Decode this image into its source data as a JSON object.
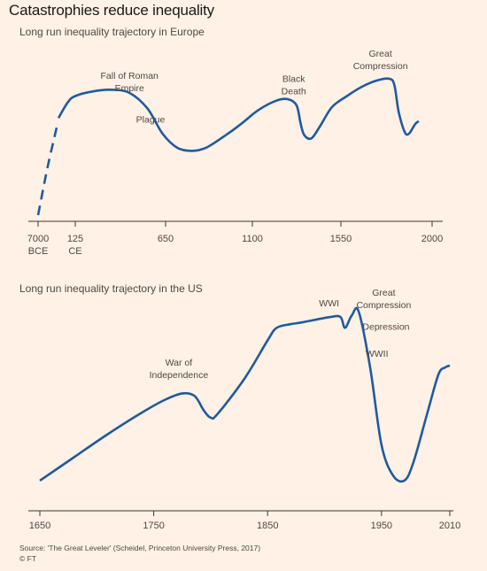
{
  "title": "Catastrophies reduce inequality",
  "source": "Source: 'The Great Leveler' (Scheidel, Princeton University Press, 2017)",
  "credit": "© FT",
  "colors": {
    "background": "#fff1e5",
    "line": "#1f5aa0",
    "axis": "#3a3633"
  },
  "chart_data": [
    {
      "type": "line",
      "title": "Long run inequality trajectory in Europe",
      "xticks": [
        "7000\nBCE",
        "125\nCE",
        "650",
        "1100",
        "1550",
        "2000"
      ],
      "series": [
        {
          "style": "dashed",
          "points": [
            [
              0,
              0.0
            ],
            [
              0.25,
              0.3
            ],
            [
              0.5,
              0.56
            ]
          ]
        },
        {
          "style": "solid",
          "points": [
            [
              0.55,
              0.62
            ],
            [
              0.8,
              0.72
            ],
            [
              1.0,
              0.76
            ],
            [
              1.3,
              0.79
            ],
            [
              1.6,
              0.8
            ],
            [
              1.9,
              0.78
            ],
            [
              2.2,
              0.68
            ],
            [
              2.45,
              0.52
            ],
            [
              2.7,
              0.43
            ],
            [
              2.95,
              0.41
            ],
            [
              3.2,
              0.43
            ],
            [
              3.5,
              0.5
            ],
            [
              3.8,
              0.58
            ],
            [
              4.1,
              0.67
            ],
            [
              4.4,
              0.73
            ],
            [
              4.6,
              0.74
            ],
            [
              4.75,
              0.7
            ],
            [
              4.82,
              0.58
            ],
            [
              4.88,
              0.51
            ],
            [
              5.0,
              0.49
            ],
            [
              5.15,
              0.57
            ],
            [
              5.35,
              0.69
            ],
            [
              5.6,
              0.76
            ],
            [
              5.85,
              0.82
            ],
            [
              6.1,
              0.86
            ],
            [
              6.3,
              0.87
            ],
            [
              6.38,
              0.83
            ],
            [
              6.45,
              0.66
            ],
            [
              6.55,
              0.53
            ],
            [
              6.62,
              0.52
            ],
            [
              6.72,
              0.58
            ],
            [
              6.78,
              0.6
            ]
          ]
        }
      ],
      "annotations": [
        {
          "text": "Fall of Roman\nEmpire",
          "x": 1.9,
          "y": 0.86
        },
        {
          "text": "Plague",
          "x": 2.25,
          "y": 0.58
        },
        {
          "text": "Black\nDeath",
          "x": 4.7,
          "y": 0.84
        },
        {
          "text": "Great\nCompression",
          "x": 6.15,
          "y": 1.0
        }
      ]
    },
    {
      "type": "line",
      "title": "Long run inequality trajectory in the US",
      "xticks": [
        "1650",
        "1750",
        "1850",
        "1950",
        "2010"
      ],
      "xtick_values": [
        1650,
        1750,
        1850,
        1950,
        2010
      ],
      "xlim": [
        1650,
        2010
      ],
      "series": [
        {
          "style": "solid",
          "points": [
            [
              1650,
              0.05
            ],
            [
              1680,
              0.18
            ],
            [
              1710,
              0.31
            ],
            [
              1740,
              0.43
            ],
            [
              1760,
              0.5
            ],
            [
              1775,
              0.535
            ],
            [
              1786,
              0.52
            ],
            [
              1794,
              0.44
            ],
            [
              1800,
              0.4
            ],
            [
              1806,
              0.42
            ],
            [
              1830,
              0.62
            ],
            [
              1850,
              0.83
            ],
            [
              1858,
              0.9
            ],
            [
              1870,
              0.92
            ],
            [
              1880,
              0.93
            ],
            [
              1905,
              0.96
            ],
            [
              1914,
              0.96
            ],
            [
              1918,
              0.9
            ],
            [
              1924,
              0.97
            ],
            [
              1930,
              0.99
            ],
            [
              1940,
              0.68
            ],
            [
              1950,
              0.25
            ],
            [
              1960,
              0.08
            ],
            [
              1970,
              0.05
            ],
            [
              1978,
              0.15
            ],
            [
              1990,
              0.42
            ],
            [
              2000,
              0.64
            ],
            [
              2006,
              0.68
            ],
            [
              2010,
              0.69
            ]
          ]
        }
      ],
      "annotations": [
        {
          "text": "War of\nIndependence",
          "year": 1772,
          "y": 0.69
        },
        {
          "text": "WWI",
          "year": 1904,
          "y": 1.02
        },
        {
          "text": "Great\nCompression",
          "year": 1952,
          "y": 1.08
        },
        {
          "text": "Depression",
          "year": 1954,
          "y": 0.89
        },
        {
          "text": "WWII",
          "year": 1946,
          "y": 0.74
        }
      ]
    }
  ]
}
